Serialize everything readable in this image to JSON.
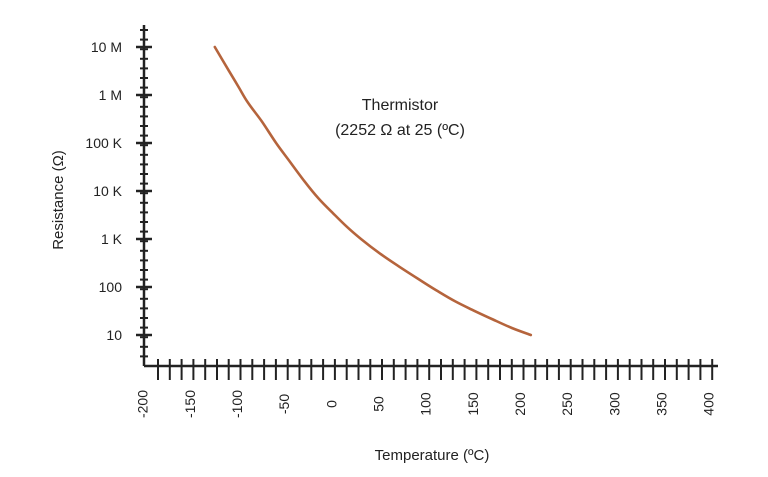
{
  "chart_data": {
    "type": "line",
    "title": "",
    "annotation": [
      "Thermistor",
      "(2252 Ω at 25 (ºC)"
    ],
    "xlabel": "Temperature (ºC)",
    "ylabel": "Resistance (Ω)",
    "y_scale": "log",
    "xlim": [
      -200,
      400
    ],
    "ylim": [
      10,
      10000000
    ],
    "grid": false,
    "y_ticks": [
      {
        "value": 10,
        "label": "10"
      },
      {
        "value": 100,
        "label": "100"
      },
      {
        "value": 1000,
        "label": "1 K"
      },
      {
        "value": 10000,
        "label": "10 K"
      },
      {
        "value": 100000,
        "label": "100 K"
      },
      {
        "value": 1000000,
        "label": "1 M"
      },
      {
        "value": 10000000,
        "label": "10 M"
      }
    ],
    "x_ticks": [
      {
        "value": -200,
        "label": "-200"
      },
      {
        "value": -150,
        "label": "-150"
      },
      {
        "value": -100,
        "label": "-100"
      },
      {
        "value": -50,
        "label": "-50"
      },
      {
        "value": 0,
        "label": "0"
      },
      {
        "value": 50,
        "label": "50"
      },
      {
        "value": 100,
        "label": "100"
      },
      {
        "value": 150,
        "label": "150"
      },
      {
        "value": 200,
        "label": "200"
      },
      {
        "value": 250,
        "label": "250"
      },
      {
        "value": 300,
        "label": "300"
      },
      {
        "value": 350,
        "label": "350"
      },
      {
        "value": 400,
        "label": "400"
      }
    ],
    "series": [
      {
        "color": "#b5643c",
        "points": [
          {
            "x": -125,
            "y": 10000000
          },
          {
            "x": -110,
            "y": 3200000
          },
          {
            "x": -100,
            "y": 1500000
          },
          {
            "x": -90,
            "y": 700000
          },
          {
            "x": -75,
            "y": 280000
          },
          {
            "x": -60,
            "y": 100000
          },
          {
            "x": -45,
            "y": 40000
          },
          {
            "x": -30,
            "y": 16000
          },
          {
            "x": -15,
            "y": 7000
          },
          {
            "x": 0,
            "y": 3500
          },
          {
            "x": 15,
            "y": 1800
          },
          {
            "x": 30,
            "y": 1000
          },
          {
            "x": 50,
            "y": 500
          },
          {
            "x": 70,
            "y": 270
          },
          {
            "x": 90,
            "y": 150
          },
          {
            "x": 110,
            "y": 85
          },
          {
            "x": 130,
            "y": 50
          },
          {
            "x": 150,
            "y": 32
          },
          {
            "x": 170,
            "y": 21
          },
          {
            "x": 190,
            "y": 14
          },
          {
            "x": 210,
            "y": 10
          }
        ]
      }
    ]
  }
}
